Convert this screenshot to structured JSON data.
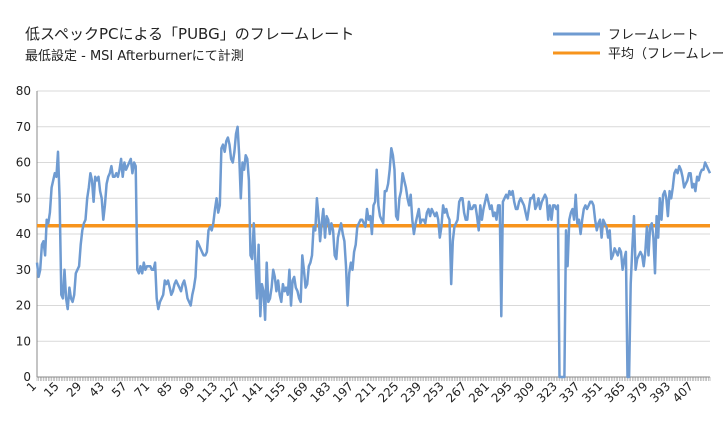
{
  "colors": {
    "frame_line": "#6f9bd1",
    "avg_line": "#f7941d",
    "axis": "#888888",
    "grid": "#d9d9d9"
  },
  "chart_data": {
    "type": "line",
    "title": "低スペックPCによる「PUBG」のフレームレート",
    "subtitle": "最低設定 - MSI Afterburnerにて計測",
    "xlabel": "",
    "ylabel": "",
    "ylim": [
      0,
      80
    ],
    "yticks": [
      0,
      10,
      20,
      30,
      40,
      50,
      60,
      70,
      80
    ],
    "xlim": [
      1,
      417
    ],
    "xtick_labels": [
      "1",
      "15",
      "29",
      "43",
      "57",
      "71",
      "85",
      "99",
      "113",
      "127",
      "141",
      "155",
      "169",
      "183",
      "197",
      "211",
      "225",
      "239",
      "253",
      "267",
      "281",
      "295",
      "309",
      "323",
      "337",
      "351",
      "365",
      "379",
      "393",
      "407"
    ],
    "grid": "horizontal",
    "legend_position": "top-right",
    "series": [
      {
        "name": "フレームレート",
        "x": [
          1,
          2,
          3,
          4,
          5,
          6,
          7,
          8,
          9,
          10,
          11,
          12,
          13,
          14,
          15,
          16,
          17,
          18,
          19,
          20,
          21,
          22,
          23,
          24,
          25,
          26,
          27,
          28,
          29,
          30,
          31,
          32,
          33,
          34,
          35,
          36,
          37,
          38,
          39,
          40,
          41,
          42,
          43,
          44,
          45,
          46,
          47,
          48,
          49,
          50,
          51,
          52,
          53,
          54,
          55,
          56,
          57,
          58,
          59,
          60,
          61,
          62,
          63,
          64,
          65,
          66,
          67,
          68,
          69,
          70,
          71,
          72,
          73,
          74,
          75,
          76,
          77,
          78,
          79,
          80,
          81,
          82,
          83,
          84,
          85,
          86,
          87,
          88,
          89,
          90,
          91,
          92,
          93,
          94,
          95,
          96,
          97,
          98,
          99,
          100,
          101,
          102,
          103,
          104,
          105,
          106,
          107,
          108,
          109,
          110,
          111,
          112,
          113,
          114,
          115,
          116,
          117,
          118,
          119,
          120,
          121,
          122,
          123,
          124,
          125,
          126,
          127,
          128,
          129,
          130,
          131,
          132,
          133,
          134,
          135,
          136,
          137,
          138,
          139,
          140,
          141,
          142,
          143,
          144,
          145,
          146,
          147,
          148,
          149,
          150,
          151,
          152,
          153,
          154,
          155,
          156,
          157,
          158,
          159,
          160,
          161,
          162,
          163,
          164,
          165,
          166,
          167,
          168,
          169,
          170,
          171,
          172,
          173,
          174,
          175,
          176,
          177,
          178,
          179,
          180,
          181,
          182,
          183,
          184,
          185,
          186,
          187,
          188,
          189,
          190,
          191,
          192,
          193,
          194,
          195,
          196,
          197,
          198,
          199,
          200,
          201,
          202,
          203,
          204,
          205,
          206,
          207,
          208,
          209,
          210,
          211,
          212,
          213,
          214,
          215,
          216,
          217,
          218,
          219,
          220,
          221,
          222,
          223,
          224,
          225,
          226,
          227,
          228,
          229,
          230,
          231,
          232,
          233,
          234,
          235,
          236,
          237,
          238,
          239,
          240,
          241,
          242,
          243,
          244,
          245,
          246,
          247,
          248,
          249,
          250,
          251,
          252,
          253,
          254,
          255,
          256,
          257,
          258,
          259,
          260,
          261,
          262,
          263,
          264,
          265,
          266,
          267,
          268,
          269,
          270,
          271,
          272,
          273,
          274,
          275,
          276,
          277,
          278,
          279,
          280,
          281,
          282,
          283,
          284,
          285,
          286,
          287,
          288,
          289,
          290,
          291,
          292,
          293,
          294,
          295,
          296,
          297,
          298,
          299,
          300,
          301,
          302,
          303,
          304,
          305,
          306,
          307,
          308,
          309,
          310,
          311,
          312,
          313,
          314,
          315,
          316,
          317,
          318,
          319,
          320,
          321,
          322,
          323,
          324,
          325,
          326,
          327,
          328,
          329,
          330,
          331,
          332,
          333,
          334,
          335,
          336,
          337,
          338,
          339,
          340,
          341,
          342,
          343,
          344,
          345,
          346,
          347,
          348,
          349,
          350,
          351,
          352,
          353,
          354,
          355,
          356,
          357,
          358,
          359,
          360,
          361,
          362,
          363,
          364,
          365,
          366,
          367,
          368,
          369,
          370,
          371,
          372,
          373,
          374,
          375,
          376,
          377,
          378,
          379,
          380,
          381,
          382,
          383,
          384,
          385,
          386,
          387,
          388,
          389,
          390,
          391,
          392,
          393,
          394,
          395,
          396,
          397,
          398,
          399,
          400,
          401,
          402,
          403,
          404,
          405,
          406,
          407,
          408,
          409,
          410,
          411,
          412,
          413,
          414,
          415,
          416,
          417
        ],
        "values": [
          32,
          28,
          30,
          37,
          38,
          34,
          44,
          43,
          46,
          53,
          55,
          57,
          56,
          63,
          50,
          23,
          22,
          30,
          22,
          19,
          25,
          22,
          21,
          23,
          29,
          30,
          31,
          37,
          41,
          43,
          44,
          50,
          53,
          57,
          55,
          49,
          56,
          55,
          56,
          52,
          50,
          44,
          48,
          54,
          56,
          57,
          59,
          56,
          56,
          57,
          56,
          58,
          61,
          56,
          60,
          58,
          59,
          60,
          61,
          57,
          60,
          59,
          30,
          29,
          31,
          29,
          32,
          30,
          31,
          31,
          31,
          30,
          30,
          32,
          22,
          19,
          21,
          22,
          23,
          27,
          26,
          27,
          25,
          23,
          24,
          26,
          27,
          26,
          25,
          24,
          26,
          27,
          25,
          22,
          21,
          20,
          23,
          25,
          28,
          38,
          37,
          36,
          35,
          34,
          34,
          35,
          41,
          42,
          41,
          43,
          47,
          50,
          46,
          48,
          64,
          65,
          63,
          66,
          67,
          65,
          61,
          60,
          63,
          68,
          70,
          62,
          50,
          60,
          58,
          62,
          61,
          55,
          34,
          33,
          43,
          32,
          22,
          37,
          17,
          26,
          24,
          16,
          32,
          21,
          22,
          25,
          30,
          28,
          24,
          27,
          23,
          21,
          26,
          24,
          25,
          23,
          30,
          20,
          27,
          28,
          25,
          24,
          22,
          21,
          34,
          30,
          25,
          26,
          31,
          32,
          34,
          42,
          41,
          50,
          45,
          38,
          43,
          47,
          39,
          45,
          44,
          40,
          43,
          41,
          34,
          33,
          39,
          41,
          43,
          40,
          38,
          31,
          20,
          29,
          32,
          30,
          35,
          37,
          42,
          43,
          44,
          44,
          43,
          42,
          47,
          44,
          45,
          40,
          48,
          49,
          58,
          48,
          45,
          44,
          43,
          52,
          52,
          54,
          58,
          64,
          62,
          58,
          45,
          44,
          50,
          52,
          57,
          55,
          53,
          50,
          48,
          51,
          44,
          40,
          43,
          45,
          47,
          43,
          44,
          44,
          43,
          46,
          47,
          45,
          47,
          46,
          45,
          46,
          44,
          39,
          42,
          48,
          46,
          47,
          45,
          44,
          26,
          38,
          42,
          43,
          44,
          49,
          50,
          50,
          46,
          44,
          44,
          49,
          47,
          47,
          48,
          48,
          45,
          41,
          48,
          44,
          47,
          49,
          51,
          49,
          47,
          48,
          45,
          46,
          44,
          48,
          48,
          17,
          49,
          50,
          51,
          50,
          52,
          51,
          52,
          49,
          47,
          47,
          49,
          50,
          49,
          48,
          46,
          44,
          47,
          50,
          50,
          51,
          47,
          48,
          50,
          47,
          49,
          50,
          51,
          50,
          44,
          48,
          44,
          48,
          48,
          47,
          48,
          0,
          0,
          0,
          0,
          41,
          31,
          44,
          46,
          47,
          44,
          51,
          43,
          44,
          40,
          44,
          47,
          48,
          47,
          48,
          49,
          49,
          48,
          44,
          41,
          43,
          44,
          39,
          44,
          43,
          42,
          39,
          41,
          33,
          34,
          36,
          35,
          34,
          36,
          35,
          30,
          33,
          35,
          0,
          0,
          26,
          36,
          45,
          30,
          33,
          34,
          35,
          34,
          31,
          35,
          42,
          34,
          42,
          43,
          39,
          29,
          45,
          39,
          50,
          44,
          51,
          52,
          50,
          45,
          52,
          50,
          53,
          57,
          58,
          57,
          59,
          58,
          56,
          53,
          54,
          55,
          57,
          57,
          53,
          54,
          52,
          56,
          55,
          57,
          58,
          58,
          60,
          59,
          58,
          57
        ]
      },
      {
        "name": "平均（フレームレート）",
        "value": 42.3
      }
    ]
  }
}
